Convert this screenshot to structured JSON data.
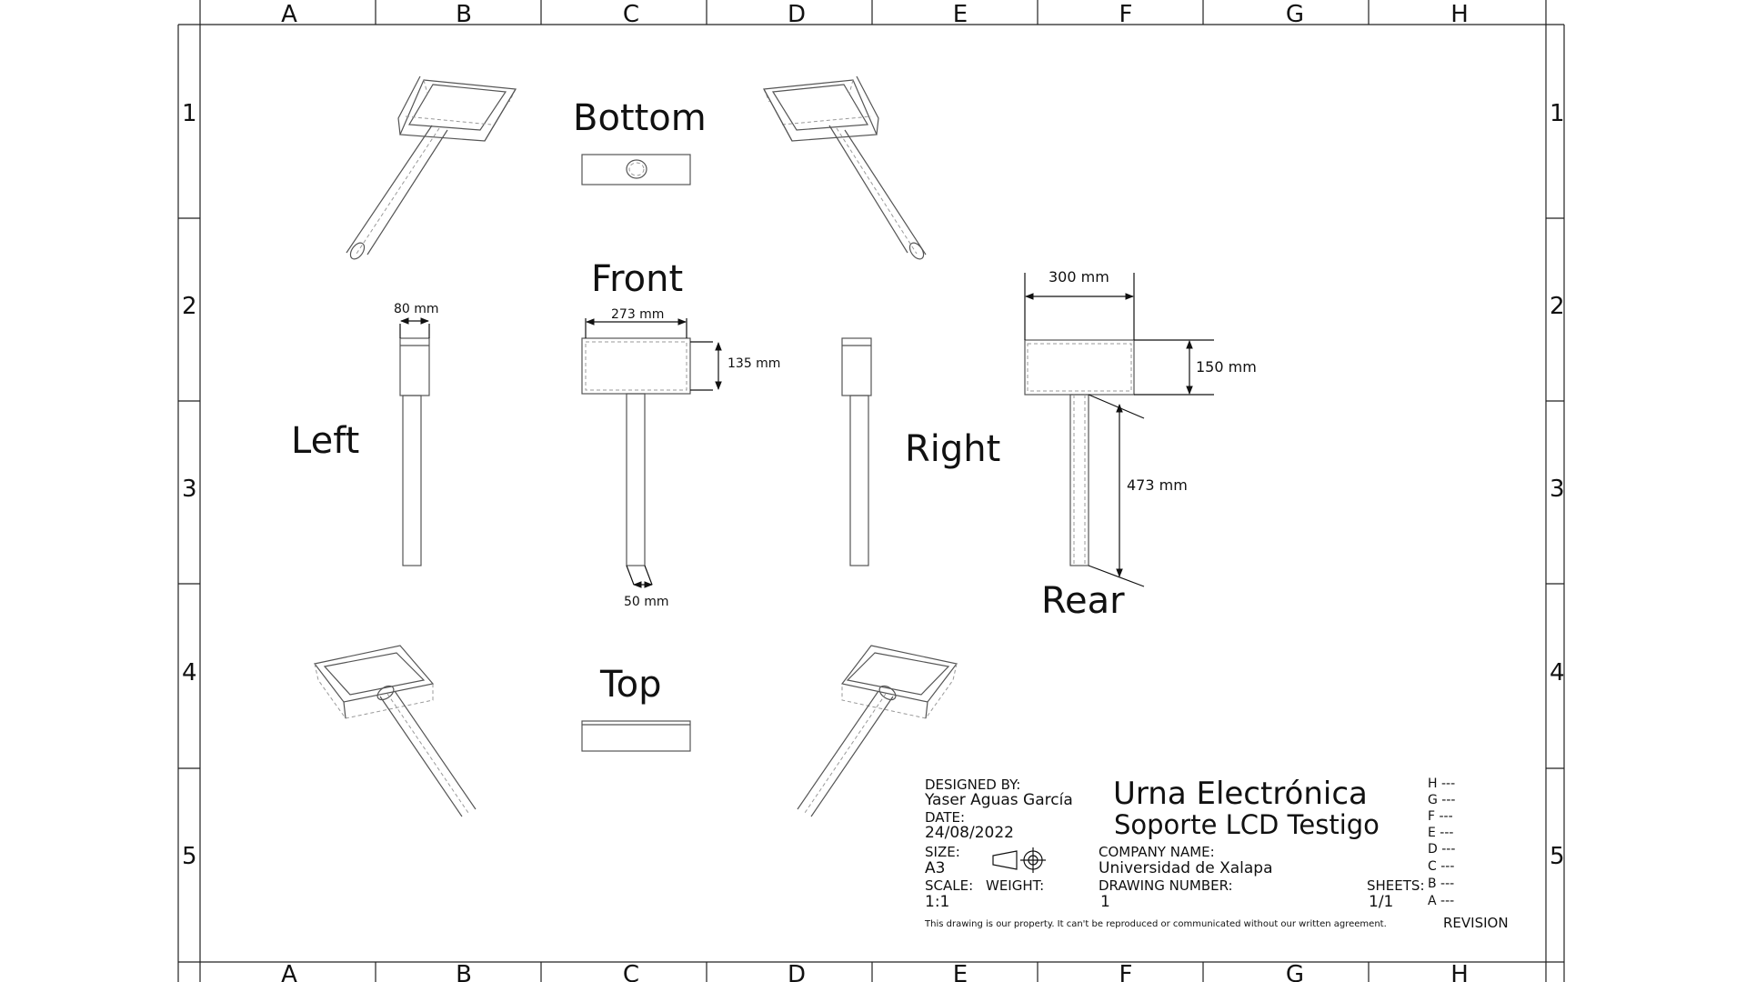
{
  "zones": {
    "columns": [
      "A",
      "B",
      "C",
      "D",
      "E",
      "F",
      "G",
      "H"
    ],
    "rows": [
      "1",
      "2",
      "3",
      "4",
      "5"
    ]
  },
  "views": {
    "bottom": "Bottom",
    "front": "Front",
    "left": "Left",
    "right": "Right",
    "rear": "Rear",
    "top": "Top"
  },
  "dimensions": {
    "left_width": "80 mm",
    "front_width": "273 mm",
    "front_height": "135 mm",
    "front_tube": "50 mm",
    "rear_width": "300 mm",
    "rear_height": "150 mm",
    "rear_tube": "473 mm"
  },
  "title_block": {
    "designed_by_label": "DESIGNED BY:",
    "designed_by": "Yaser Aguas García",
    "date_label": "DATE:",
    "date": "24/08/2022",
    "size_label": "SIZE:",
    "size": "A3",
    "scale_label": "SCALE:",
    "scale": "1:1",
    "weight_label": "WEIGHT:",
    "title": "Urna Electrónica",
    "subtitle": "Soporte LCD Testigo",
    "company_label": "COMPANY NAME:",
    "company": "Universidad de Xalapa",
    "drawing_number_label": "DRAWING NUMBER:",
    "drawing_number": "1",
    "sheets_label": "SHEETS:",
    "sheets": "1/1",
    "revision_label": "REVISION",
    "revisions": [
      "H ---",
      "G ---",
      "F ---",
      "E ---",
      "D ---",
      "C ---",
      "B ---",
      "A ---"
    ],
    "legal": "This drawing is our property. It can't be reproduced or communicated without our written agreement."
  }
}
